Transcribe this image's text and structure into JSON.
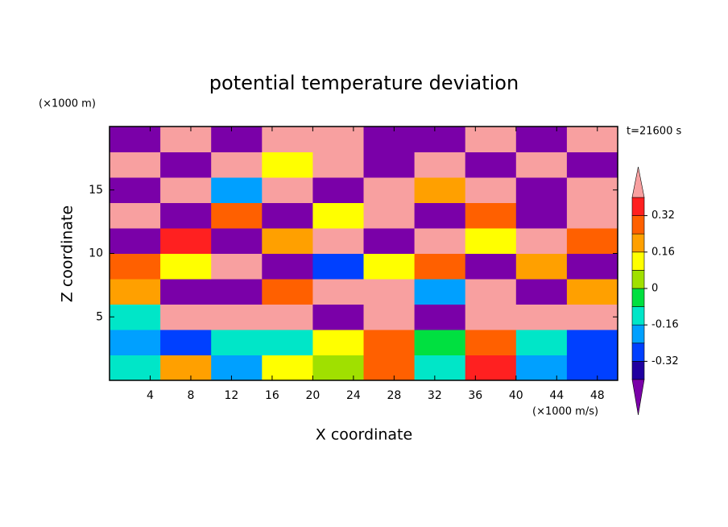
{
  "chart_data": {
    "type": "contour",
    "title": "potential temperature deviation",
    "x_label": "X coordinate",
    "y_label": "Z coordinate",
    "x_unit": "(×1000 m/s)",
    "y_unit": "(×1000 m)",
    "time_label": "t=21600 s",
    "xlim": [
      0,
      50
    ],
    "xticks": [
      4,
      8,
      12,
      16,
      20,
      24,
      28,
      32,
      36,
      40,
      44,
      48
    ],
    "ylim": [
      0,
      20
    ],
    "yticks": [
      5,
      10,
      15
    ],
    "x": [
      2.5,
      7.5,
      12.5,
      17.5,
      22.5,
      27.5,
      32.5,
      37.5,
      42.5,
      47.5
    ],
    "y": [
      1,
      3,
      5,
      7,
      9,
      11,
      13,
      15,
      17,
      19
    ],
    "values": [
      [
        -0.1,
        0.2,
        -0.2,
        0.1,
        0.05,
        0.3,
        -0.1,
        0.35,
        -0.2,
        -0.3
      ],
      [
        -0.2,
        -0.25,
        -0.1,
        -0.15,
        0.1,
        0.25,
        -0.05,
        0.3,
        -0.1,
        -0.28
      ],
      [
        -0.1,
        0.45,
        0.45,
        0.45,
        -0.45,
        0.45,
        -0.45,
        0.45,
        0.45,
        0.45
      ],
      [
        0.2,
        -0.45,
        -0.45,
        0.3,
        0.45,
        0.45,
        -0.2,
        0.45,
        -0.45,
        0.2
      ],
      [
        0.3,
        0.1,
        0.45,
        -0.45,
        -0.3,
        0.1,
        0.3,
        -0.45,
        0.2,
        -0.45
      ],
      [
        -0.45,
        0.35,
        -0.45,
        0.2,
        0.45,
        -0.45,
        0.45,
        0.1,
        0.45,
        0.3
      ],
      [
        0.45,
        -0.45,
        0.3,
        -0.45,
        0.1,
        0.45,
        -0.45,
        0.3,
        -0.45,
        0.45
      ],
      [
        -0.45,
        0.45,
        -0.2,
        0.45,
        -0.45,
        0.45,
        0.2,
        0.45,
        -0.45,
        0.45
      ],
      [
        0.45,
        -0.45,
        0.45,
        0.1,
        0.45,
        -0.45,
        0.45,
        -0.45,
        0.45,
        -0.45
      ],
      [
        -0.45,
        0.45,
        -0.45,
        0.45,
        0.45,
        -0.45,
        -0.45,
        0.45,
        -0.45,
        0.45
      ]
    ],
    "levels": [
      -0.4,
      -0.32,
      -0.24,
      -0.16,
      -0.08,
      0,
      0.08,
      0.16,
      0.24,
      0.32,
      0.4
    ],
    "colorbar_ticks": [
      -0.32,
      -0.16,
      0,
      0.16,
      0.32
    ],
    "colors": [
      "#7a00a8",
      "#2000a0",
      "#0040ff",
      "#00a0ff",
      "#00e6c8",
      "#00e040",
      "#a0e000",
      "#ffff00",
      "#ffa000",
      "#ff6000",
      "#ff2020",
      "#f8a0a0"
    ]
  }
}
